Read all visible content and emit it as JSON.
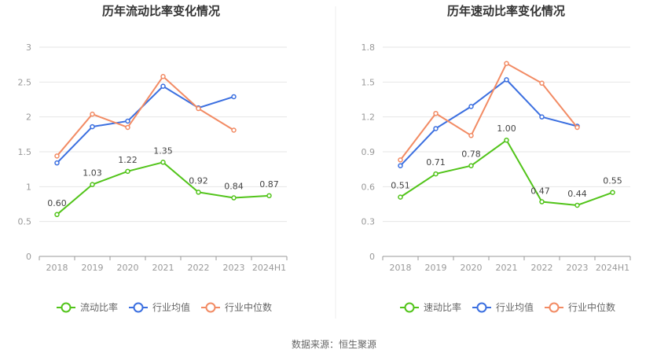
{
  "colors": {
    "green": "#52c41a",
    "blue": "#3b6fe0",
    "orange": "#f28b64",
    "grid": "#e6e6e6",
    "axis": "#999999",
    "divider": "#eeeeee"
  },
  "footer": {
    "source": "数据来源：恒生聚源"
  },
  "chart_data": [
    {
      "type": "line",
      "title": "历年流动比率变化情况",
      "categories": [
        "2018",
        "2019",
        "2020",
        "2021",
        "2022",
        "2023",
        "2024H1"
      ],
      "ylim": [
        0,
        3
      ],
      "yticks": [
        "0",
        "0.5",
        "1",
        "1.5",
        "2",
        "2.5",
        "3"
      ],
      "grid": true,
      "legend": "bottom",
      "series": [
        {
          "name": "流动比率",
          "color": "#52c41a",
          "labels": true,
          "values": [
            0.6,
            1.03,
            1.22,
            1.35,
            0.92,
            0.84,
            0.87
          ],
          "value_labels": [
            "0.60",
            "1.03",
            "1.22",
            "1.35",
            "0.92",
            "0.84",
            "0.87"
          ]
        },
        {
          "name": "行业均值",
          "color": "#3b6fe0",
          "labels": false,
          "values": [
            1.34,
            1.86,
            1.94,
            2.44,
            2.13,
            2.29,
            null
          ]
        },
        {
          "name": "行业中位数",
          "color": "#f28b64",
          "labels": false,
          "values": [
            1.44,
            2.04,
            1.85,
            2.58,
            2.12,
            1.81,
            null
          ]
        }
      ]
    },
    {
      "type": "line",
      "title": "历年速动比率变化情况",
      "categories": [
        "2018",
        "2019",
        "2020",
        "2021",
        "2022",
        "2023",
        "2024H1"
      ],
      "ylim": [
        0,
        1.8
      ],
      "yticks": [
        "0",
        "0.3",
        "0.6",
        "0.9",
        "1.2",
        "1.5",
        "1.8"
      ],
      "grid": true,
      "legend": "bottom",
      "series": [
        {
          "name": "速动比率",
          "color": "#52c41a",
          "labels": true,
          "values": [
            0.51,
            0.71,
            0.78,
            1.0,
            0.47,
            0.44,
            0.55
          ],
          "value_labels": [
            "0.51",
            "0.71",
            "0.78",
            "1.00",
            "0.47",
            "0.44",
            "0.55"
          ]
        },
        {
          "name": "行业均值",
          "color": "#3b6fe0",
          "labels": false,
          "values": [
            0.78,
            1.1,
            1.29,
            1.52,
            1.2,
            1.12,
            null
          ]
        },
        {
          "name": "行业中位数",
          "color": "#f28b64",
          "labels": false,
          "values": [
            0.83,
            1.23,
            1.04,
            1.66,
            1.49,
            1.11,
            null
          ]
        }
      ]
    }
  ]
}
